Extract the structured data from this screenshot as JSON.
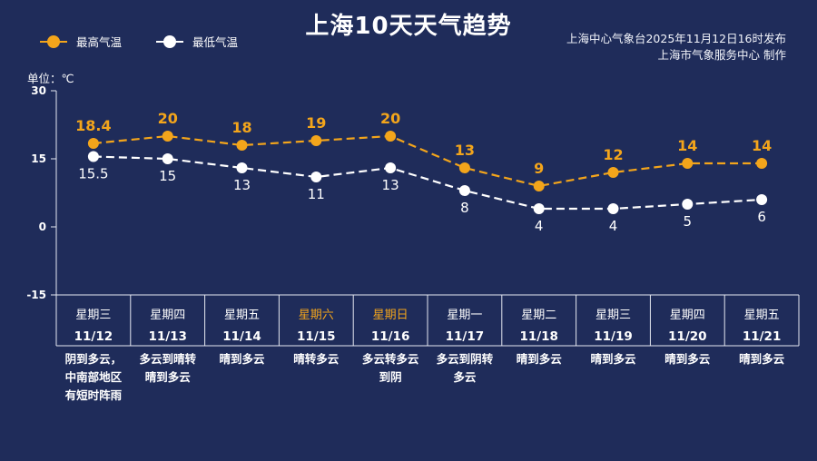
{
  "header": {
    "title": "上海10天天气趋势",
    "publisher_line1": "上海中心气象台2025年11月12日16时发布",
    "publisher_line2": "上海市气象服务中心 制作"
  },
  "unit_label": "单位：℃",
  "colors": {
    "background": "#1f2c5a",
    "high": "#f3a51b",
    "low": "#ffffff",
    "weekend": "#f3a51b",
    "grid": "#e6e9f2"
  },
  "chart_data": {
    "type": "line",
    "title": "上海10天天气趋势",
    "ylim": [
      -15,
      30
    ],
    "yticks": [
      30,
      15,
      0,
      -15
    ],
    "categories": [
      "11/12",
      "11/13",
      "11/14",
      "11/15",
      "11/16",
      "11/17",
      "11/18",
      "11/19",
      "11/20",
      "11/21"
    ],
    "weekdays": [
      "星期三",
      "星期四",
      "星期五",
      "星期六",
      "星期日",
      "星期一",
      "星期二",
      "星期三",
      "星期四",
      "星期五"
    ],
    "weekend_flags": [
      false,
      false,
      false,
      true,
      true,
      false,
      false,
      false,
      false,
      false
    ],
    "weather": [
      [
        "阴到多云，",
        "中南部地区",
        "有短时阵雨"
      ],
      [
        "多云到晴转",
        "晴到多云"
      ],
      [
        "晴到多云"
      ],
      [
        "晴转多云"
      ],
      [
        "多云转多云",
        "到阴"
      ],
      [
        "多云到阴转",
        "多云"
      ],
      [
        "晴到多云"
      ],
      [
        "晴到多云"
      ],
      [
        "晴到多云"
      ],
      [
        "晴到多云"
      ]
    ],
    "series": [
      {
        "name": "最高气温",
        "values": [
          18.4,
          20,
          18,
          19,
          20,
          13,
          9,
          12,
          14,
          14
        ],
        "labels": [
          "18.4",
          "20",
          "18",
          "19",
          "20",
          "13",
          "9",
          "12",
          "14",
          "14"
        ]
      },
      {
        "name": "最低气温",
        "values": [
          15.5,
          15,
          13,
          11,
          13,
          8,
          4,
          4,
          5,
          6
        ],
        "labels": [
          "15.5",
          "15",
          "13",
          "11",
          "13",
          "8",
          "4",
          "4",
          "5",
          "6"
        ]
      }
    ]
  }
}
